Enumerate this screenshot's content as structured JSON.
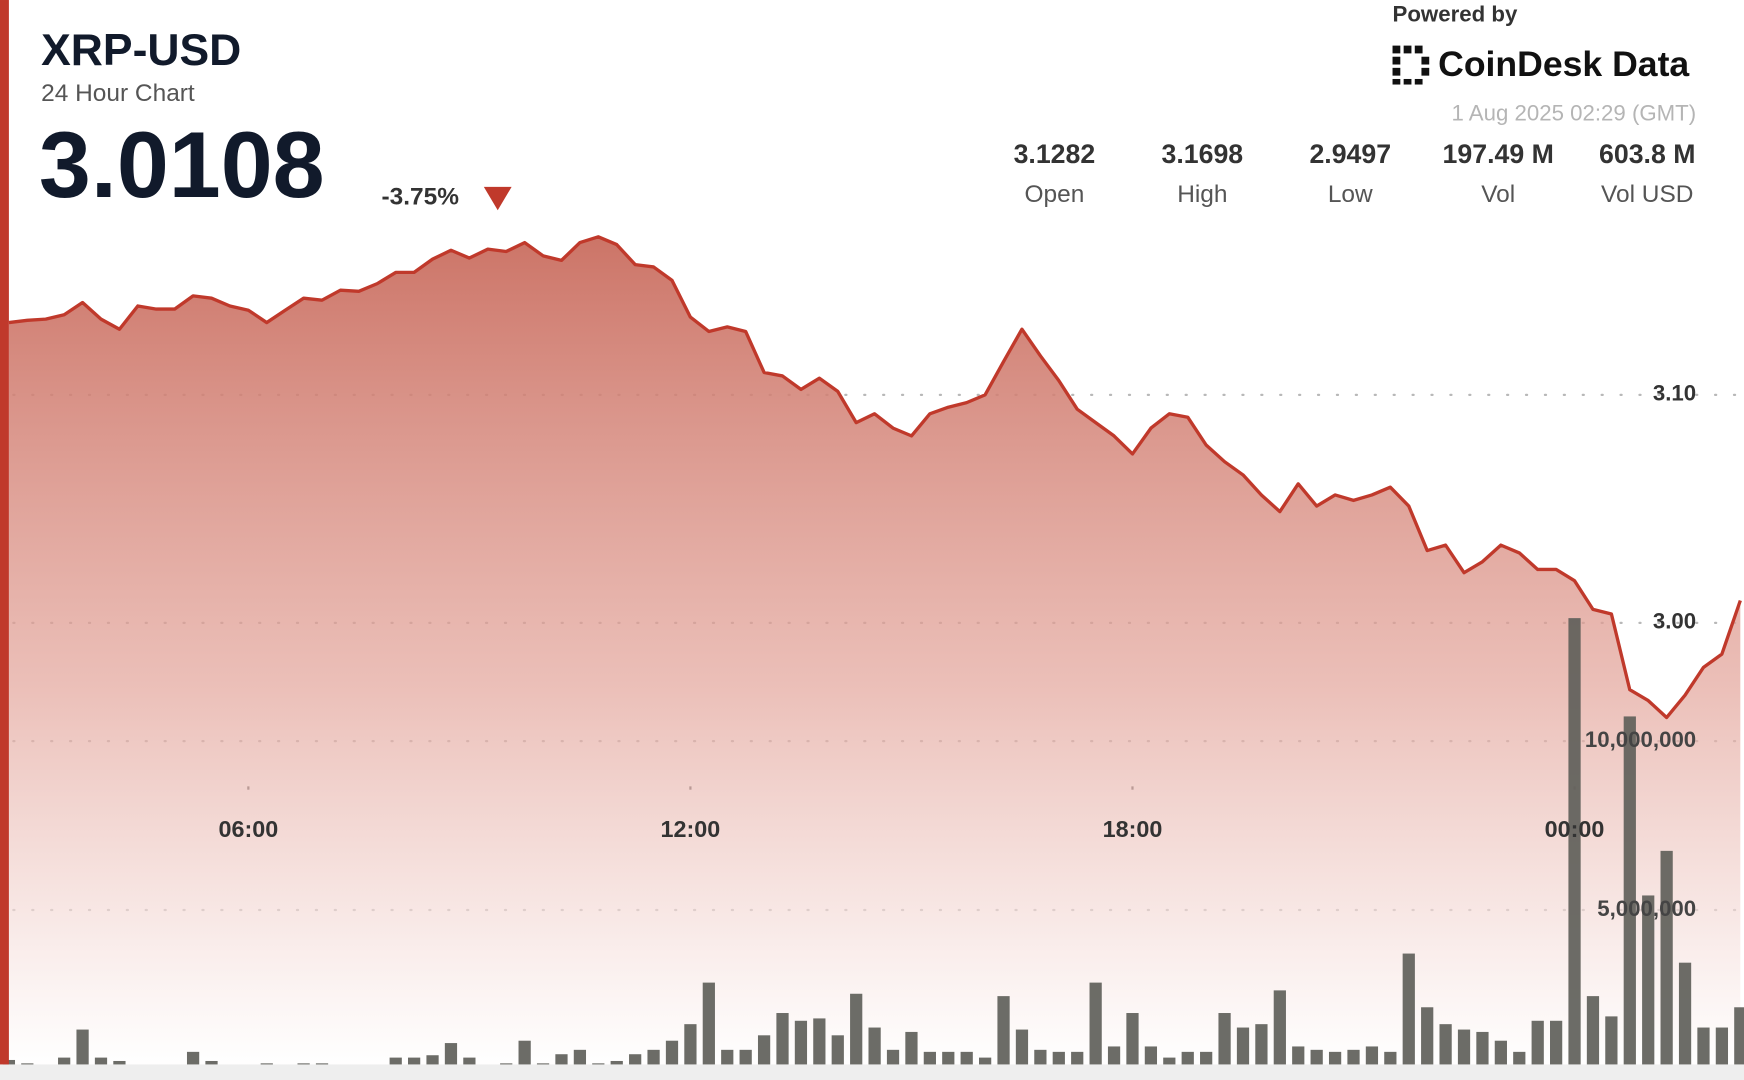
{
  "header": {
    "powered_by": "Powered by",
    "brand": "CoinDesk Data",
    "timestamp": "1 Aug 2025 02:29 (GMT)",
    "price": "3.0108",
    "change": "-3.75%",
    "stats": [
      {
        "value": "3.1282",
        "label": "Open"
      },
      {
        "value": "3.1698",
        "label": "High"
      },
      {
        "value": "2.9497",
        "label": "Low"
      },
      {
        "value": "197.49 M",
        "label": "Vol"
      },
      {
        "value": "603.8 M",
        "label": "Vol USD"
      }
    ]
  },
  "chart_data": {
    "type": "area",
    "title": "XRP-USD",
    "subtitle": "24 Hour Chart",
    "x": [
      2.75,
      3,
      3.25,
      3.5,
      3.75,
      4,
      4.25,
      4.5,
      4.75,
      5,
      5.25,
      5.5,
      5.75,
      6,
      6.25,
      6.5,
      6.75,
      7,
      7.25,
      7.5,
      7.75,
      8,
      8.25,
      8.5,
      8.75,
      9,
      9.25,
      9.5,
      9.75,
      10,
      10.25,
      10.5,
      10.75,
      11,
      11.25,
      11.5,
      11.75,
      12,
      12.25,
      12.5,
      12.75,
      13,
      13.25,
      13.5,
      13.75,
      14,
      14.25,
      14.5,
      14.75,
      15,
      15.25,
      15.5,
      15.75,
      16,
      16.25,
      16.5,
      16.75,
      17,
      17.25,
      17.5,
      17.75,
      18,
      18.25,
      18.5,
      18.75,
      19,
      19.25,
      19.5,
      19.75,
      20,
      20.25,
      20.5,
      20.75,
      21,
      21.25,
      21.5,
      21.75,
      22,
      22.25,
      22.5,
      22.75,
      23,
      23.25,
      23.5,
      23.75,
      24,
      24.25,
      24.5,
      24.75,
      25,
      25.25,
      25.5,
      25.75,
      26,
      26.25
    ],
    "series": [
      {
        "color": "#c0392b",
        "values": [
          3.1317,
          3.1327,
          3.1332,
          3.1351,
          3.1405,
          3.1332,
          3.1288,
          3.139,
          3.1376,
          3.1376,
          3.1434,
          3.1424,
          3.139,
          3.1371,
          3.1317,
          3.1371,
          3.1424,
          3.1415,
          3.1459,
          3.1454,
          3.1488,
          3.1537,
          3.1537,
          3.1595,
          3.1634,
          3.16,
          3.1639,
          3.1629,
          3.1668,
          3.161,
          3.159,
          3.1668,
          3.1693,
          3.1659,
          3.1571,
          3.1561,
          3.1502,
          3.1341,
          3.1278,
          3.1298,
          3.1278,
          3.1098,
          3.1083,
          3.1024,
          3.1073,
          3.1015,
          3.0878,
          3.0917,
          3.0854,
          3.082,
          3.0917,
          3.0946,
          3.0966,
          3.1,
          3.1146,
          3.1288,
          3.1171,
          3.1063,
          3.0937,
          3.0878,
          3.082,
          3.0741,
          3.0854,
          3.0917,
          3.0902,
          3.078,
          3.0707,
          3.0649,
          3.0561,
          3.0488,
          3.061,
          3.0512,
          3.0561,
          3.0537,
          3.0561,
          3.0595,
          3.0512,
          3.0317,
          3.0341,
          3.022,
          3.0268,
          3.0341,
          3.0307,
          3.0234,
          3.0234,
          3.0185,
          3.0059,
          3.0039,
          2.9707,
          2.9659,
          2.9585,
          2.9683,
          2.9805,
          2.9863,
          3.0098
        ]
      },
      {
        "type": "bar",
        "axis": "y2",
        "color": "#5f5f5a",
        "values": [
          560000,
          460000,
          300000,
          630000,
          1460000,
          630000,
          530000,
          300000,
          360000,
          360000,
          800000,
          530000,
          400000,
          360000,
          460000,
          300000,
          460000,
          460000,
          300000,
          360000,
          300000,
          630000,
          630000,
          700000,
          1060000,
          630000,
          300000,
          460000,
          1130000,
          460000,
          730000,
          860000,
          460000,
          530000,
          730000,
          860000,
          1130000,
          1620000,
          2850000,
          860000,
          860000,
          1290000,
          1950000,
          1720000,
          1790000,
          1290000,
          2520000,
          1520000,
          860000,
          1390000,
          800000,
          800000,
          800000,
          630000,
          2450000,
          1460000,
          860000,
          800000,
          800000,
          2850000,
          960000,
          1950000,
          960000,
          630000,
          800000,
          800000,
          1950000,
          1520000,
          1620000,
          2620000,
          960000,
          860000,
          800000,
          860000,
          960000,
          800000,
          3710000,
          2120000,
          1620000,
          1460000,
          1390000,
          1130000,
          800000,
          1720000,
          1720000,
          13640000,
          2450000,
          1850000,
          10730000,
          5430000,
          6750000,
          3440000,
          1520000,
          1520000,
          2120000
        ]
      }
    ],
    "xlim": [
      2.75,
      26.3
    ],
    "xticks": [
      {
        "value": 6,
        "label": "06:00"
      },
      {
        "value": 12,
        "label": "12:00"
      },
      {
        "value": 18,
        "label": "18:00"
      },
      {
        "value": 24,
        "label": "00:00"
      }
    ],
    "ylim": [
      2.8,
      3.2
    ],
    "yticks": [
      {
        "value": 3,
        "label": "3.00"
      },
      {
        "value": 3.1,
        "label": "3.10"
      }
    ],
    "y2lim": [
      0,
      27000000
    ],
    "y2ticks": [
      {
        "value": 5000000,
        "label": "5,000,000"
      },
      {
        "value": 10000000,
        "label": "10,000,000"
      }
    ],
    "grid": true
  }
}
